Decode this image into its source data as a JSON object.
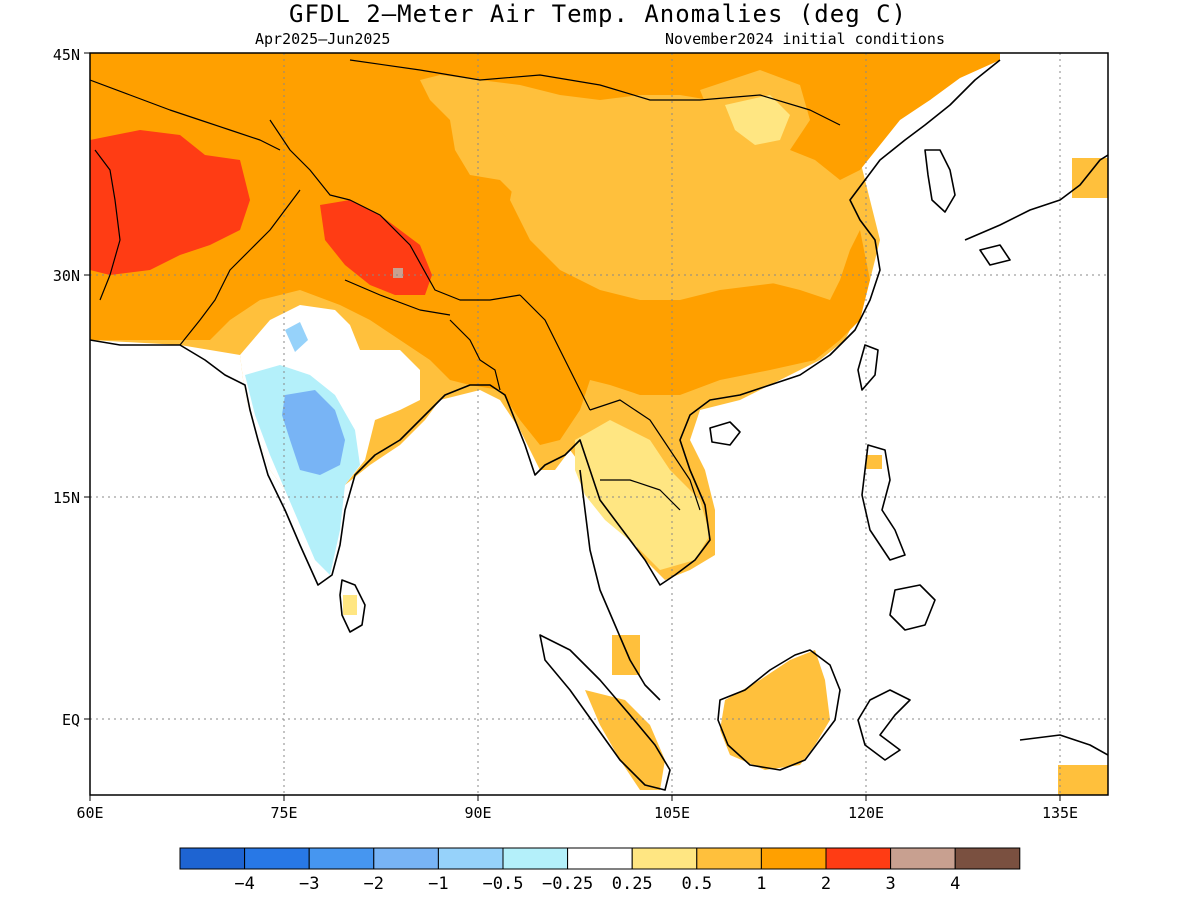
{
  "title": "GFDL 2—Meter Air Temp. Anomalies (deg C)",
  "subtitle_left": "Apr2025—Jun2025",
  "subtitle_right": "November2024 initial conditions",
  "chart_data": {
    "type": "map",
    "variable": "2-Meter Air Temperature Anomaly",
    "units": "deg C",
    "lon_range": [
      60,
      140
    ],
    "lat_range": [
      -6,
      45
    ],
    "lon_ticks": [
      {
        "value": 60,
        "label": "60E"
      },
      {
        "value": 75,
        "label": "75E"
      },
      {
        "value": 90,
        "label": "90E"
      },
      {
        "value": 105,
        "label": "105E"
      },
      {
        "value": 120,
        "label": "120E"
      },
      {
        "value": 135,
        "label": "135E"
      }
    ],
    "lat_ticks": [
      {
        "value": 45,
        "label": "45N"
      },
      {
        "value": 30,
        "label": "30N"
      },
      {
        "value": 15,
        "label": "15N"
      },
      {
        "value": 0,
        "label": "EQ"
      }
    ],
    "grid": true,
    "colorbar": {
      "colors": [
        "#1e64d2",
        "#2878e6",
        "#4696f0",
        "#78b4f5",
        "#96d2fa",
        "#b4f0fa",
        "#ffffff",
        "#ffe682",
        "#ffc03c",
        "#ffa000",
        "#ff3c14",
        "#c8a090",
        "#7a5040"
      ],
      "labels": [
        "−4",
        "−3",
        "−2",
        "−1",
        "−0.5",
        "−0.25",
        "0.25",
        "0.5",
        "1",
        "2",
        "3",
        "4"
      ]
    },
    "anomaly_regions": [
      {
        "region": "Central Asia / Iran / Afghanistan",
        "value_range": "2 to 3",
        "color": "#ff3c14"
      },
      {
        "region": "Western Himalaya / Tibet south rim",
        "value_range": "2 to 3",
        "color": "#ff3c14"
      },
      {
        "region": "Mongolia / Northern China / Tibetan Plateau",
        "value_range": "1 to 2",
        "color": "#ffa000"
      },
      {
        "region": "Southern China / Indochina north",
        "value_range": "0.5 to 1",
        "color": "#ffc03c"
      },
      {
        "region": "Thailand / Cambodia",
        "value_range": "0.25 to 0.5",
        "color": "#ffe682"
      },
      {
        "region": "Central / Western India",
        "value_range": "-1 to -0.25",
        "color": "#96d2fa"
      },
      {
        "region": "Maritime Southeast Asia (Borneo, Sumatra)",
        "value_range": "0.5 to 1",
        "color": "#ffc03c"
      }
    ]
  }
}
